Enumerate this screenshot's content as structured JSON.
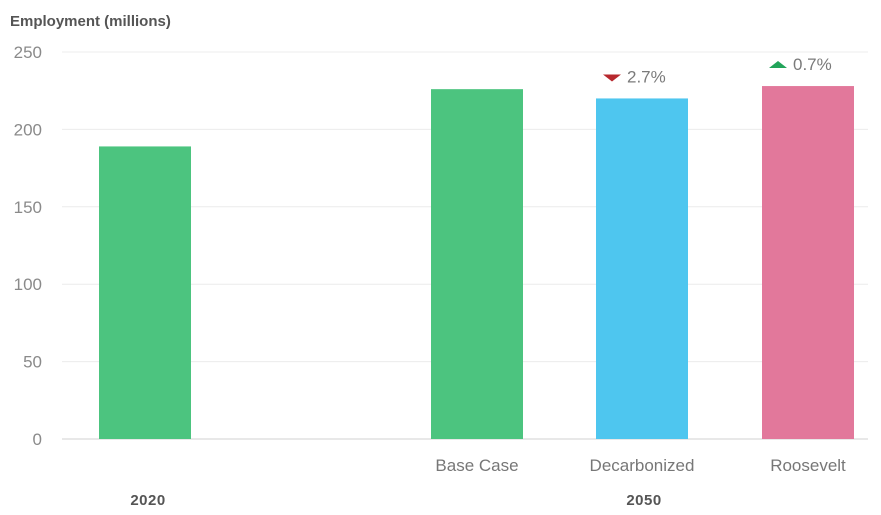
{
  "chart_data": {
    "type": "bar",
    "ylabel": "Employment (millions)",
    "ylim": [
      0,
      250
    ],
    "yticks": [
      0,
      50,
      100,
      150,
      200,
      250
    ],
    "grid": true,
    "categories": [
      "",
      "Base Case",
      "Decarbonized",
      "Roosevelt"
    ],
    "groups": [
      {
        "label": "2020",
        "categories": [
          ""
        ]
      },
      {
        "label": "2050",
        "categories": [
          "Base Case",
          "Decarbonized",
          "Roosevelt"
        ]
      }
    ],
    "values": [
      189,
      226,
      220,
      228
    ],
    "bar_colors": [
      "#4cc47f",
      "#4cc47f",
      "#4ec6ef",
      "#e2789b"
    ],
    "annotations": [
      {
        "category": "Decarbonized",
        "direction": "down",
        "text": "2.7%",
        "color": "#b7282e"
      },
      {
        "category": "Roosevelt",
        "direction": "up",
        "text": "0.7%",
        "color": "#22a45a"
      }
    ]
  }
}
